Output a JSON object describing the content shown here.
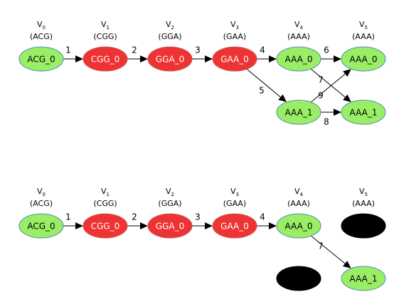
{
  "colors": {
    "green": "#99ee66",
    "green_stroke": "#4a8fb0",
    "red": "#ee3333",
    "red_stroke": "#cc5555",
    "black": "#000000"
  },
  "graphs": [
    {
      "columns": [
        {
          "v": "V",
          "sub": "0",
          "seq": "(ACG)"
        },
        {
          "v": "V",
          "sub": "1",
          "seq": "(CGG)"
        },
        {
          "v": "V",
          "sub": "2",
          "seq": "(GGA)"
        },
        {
          "v": "V",
          "sub": "3",
          "seq": "(GAA)"
        },
        {
          "v": "V",
          "sub": "4",
          "seq": "(AAA)"
        },
        {
          "v": "V",
          "sub": "5",
          "seq": "(AAA)"
        }
      ],
      "nodes": [
        {
          "id": "n0",
          "label": "ACG_0",
          "color": "green"
        },
        {
          "id": "n1",
          "label": "CGG_0",
          "color": "red"
        },
        {
          "id": "n2",
          "label": "GGA_0",
          "color": "red"
        },
        {
          "id": "n3",
          "label": "GAA_0",
          "color": "red"
        },
        {
          "id": "n4",
          "label": "AAA_0",
          "color": "green"
        },
        {
          "id": "n5",
          "label": "AAA_0",
          "color": "green"
        },
        {
          "id": "n6",
          "label": "AAA_1",
          "color": "green"
        },
        {
          "id": "n7",
          "label": "AAA_1",
          "color": "green"
        }
      ],
      "edges": [
        {
          "from": "n0",
          "to": "n1",
          "label": "1"
        },
        {
          "from": "n1",
          "to": "n2",
          "label": "2"
        },
        {
          "from": "n2",
          "to": "n3",
          "label": "3"
        },
        {
          "from": "n3",
          "to": "n4",
          "label": "4"
        },
        {
          "from": "n3",
          "to": "n6",
          "label": "5"
        },
        {
          "from": "n4",
          "to": "n5",
          "label": "6"
        },
        {
          "from": "n4",
          "to": "n7",
          "label": "7"
        },
        {
          "from": "n6",
          "to": "n7",
          "label": "8"
        },
        {
          "from": "n6",
          "to": "n5",
          "label": "9"
        }
      ]
    },
    {
      "columns": [
        {
          "v": "V",
          "sub": "0",
          "seq": "(ACG)"
        },
        {
          "v": "V",
          "sub": "1",
          "seq": "(CGG)"
        },
        {
          "v": "V",
          "sub": "2",
          "seq": "(GGA)"
        },
        {
          "v": "V",
          "sub": "3",
          "seq": "(GAA)"
        },
        {
          "v": "V",
          "sub": "4",
          "seq": "(AAA)"
        },
        {
          "v": "V",
          "sub": "5",
          "seq": "(AAA)"
        }
      ],
      "nodes": [
        {
          "id": "m0",
          "label": "ACG_0",
          "color": "green"
        },
        {
          "id": "m1",
          "label": "CGG_0",
          "color": "red"
        },
        {
          "id": "m2",
          "label": "GGA_0",
          "color": "red"
        },
        {
          "id": "m3",
          "label": "GAA_0",
          "color": "red"
        },
        {
          "id": "m4",
          "label": "AAA_0",
          "color": "green"
        },
        {
          "id": "m5",
          "label": "",
          "color": "black"
        },
        {
          "id": "m6",
          "label": "",
          "color": "black"
        },
        {
          "id": "m7",
          "label": "AAA_1",
          "color": "green"
        }
      ],
      "edges": [
        {
          "from": "m0",
          "to": "m1",
          "label": "1"
        },
        {
          "from": "m1",
          "to": "m2",
          "label": "2"
        },
        {
          "from": "m2",
          "to": "m3",
          "label": "3"
        },
        {
          "from": "m3",
          "to": "m4",
          "label": "4"
        },
        {
          "from": "m4",
          "to": "m7",
          "label": "7"
        }
      ]
    }
  ]
}
